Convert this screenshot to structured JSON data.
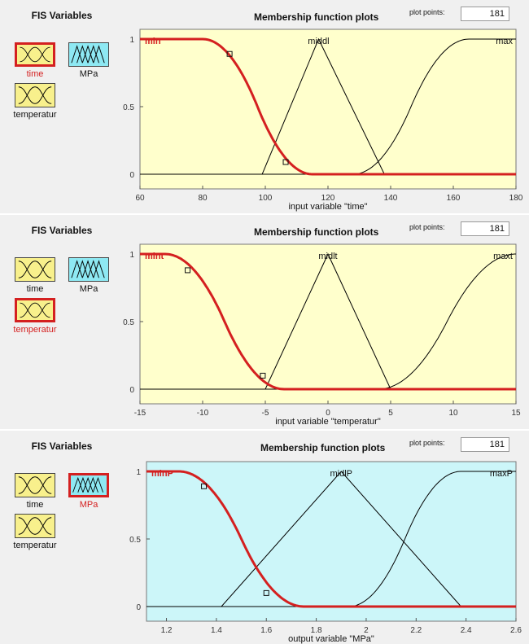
{
  "colors": {
    "input_fill": "#f8f08c",
    "output_fill": "#8ee9f3",
    "plot_bg_input": "#ffffcc",
    "plot_bg_output": "#ccf6f9",
    "selected": "#d42020",
    "curve": "#000000"
  },
  "panels": [
    {
      "fis_title": "FIS Variables",
      "variables": [
        {
          "name": "time",
          "kind": "input",
          "selected": true
        },
        {
          "name": "MPa",
          "kind": "output",
          "selected": false
        },
        {
          "name": "temperatur",
          "kind": "input",
          "selected": false
        }
      ],
      "plot_title": "Membership function plots",
      "plot_points_label": "plot points:",
      "plot_points": "181",
      "xlabel": "input variable \"time\"",
      "chart_data": {
        "type": "line",
        "xlim": [
          60,
          180
        ],
        "ylim": [
          0,
          1
        ],
        "x_ticks": [
          "60",
          "80",
          "100",
          "120",
          "140",
          "160",
          "180"
        ],
        "y_ticks": [
          "0",
          "0.5",
          "1"
        ],
        "series": [
          {
            "name": "min",
            "shape": "zmf",
            "params": [
              80,
              115
            ],
            "selected": true
          },
          {
            "name": "middl",
            "shape": "trimf",
            "params": [
              99,
              117,
              138
            ],
            "selected": false
          },
          {
            "name": "max",
            "shape": "smf",
            "params": [
              128,
              165
            ],
            "selected": false
          }
        ],
        "markers": [
          [
            88.6,
            0.89
          ],
          [
            106.5,
            0.09
          ]
        ]
      }
    },
    {
      "fis_title": "FIS Variables",
      "variables": [
        {
          "name": "time",
          "kind": "input",
          "selected": false
        },
        {
          "name": "MPa",
          "kind": "output",
          "selected": false
        },
        {
          "name": "temperatur",
          "kind": "input",
          "selected": true
        }
      ],
      "plot_title": "Membership function plots",
      "plot_points_label": "plot points:",
      "plot_points": "181",
      "xlabel": "input variable \"temperatur\"",
      "chart_data": {
        "type": "line",
        "xlim": [
          -15,
          15
        ],
        "ylim": [
          0,
          1
        ],
        "x_ticks": [
          "-15",
          "-10",
          "-5",
          "0",
          "5",
          "10",
          "15"
        ],
        "y_ticks": [
          "0",
          "0.5",
          "1"
        ],
        "series": [
          {
            "name": "mint",
            "shape": "zmf",
            "params": [
              -13,
              -3.5
            ],
            "selected": true
          },
          {
            "name": "midlt",
            "shape": "trimf",
            "params": [
              -5,
              0,
              5
            ],
            "selected": false
          },
          {
            "name": "maxt",
            "shape": "smf",
            "params": [
              4,
              15
            ],
            "selected": false
          }
        ],
        "markers": [
          [
            -11.2,
            0.88
          ],
          [
            -5.2,
            0.1
          ]
        ]
      }
    },
    {
      "fis_title": "FIS Variables",
      "variables": [
        {
          "name": "time",
          "kind": "input",
          "selected": false
        },
        {
          "name": "MPa",
          "kind": "output",
          "selected": true
        },
        {
          "name": "temperatur",
          "kind": "input",
          "selected": false
        }
      ],
      "plot_title": "Membership function plots",
      "plot_points_label": "plot points:",
      "plot_points": "181",
      "xlabel": "output variable \"MPa\"",
      "chart_data": {
        "type": "line",
        "xlim": [
          1.12,
          2.6
        ],
        "ylim": [
          0,
          1
        ],
        "x_ticks": [
          "1.2",
          "1.4",
          "1.6",
          "1.8",
          "2",
          "2.2",
          "2.4",
          "2.6"
        ],
        "y_ticks": [
          "0",
          "0.5",
          "1"
        ],
        "series": [
          {
            "name": "minP",
            "shape": "zmf",
            "params": [
              1.25,
              1.75
            ],
            "selected": true
          },
          {
            "name": "midlP",
            "shape": "trimf",
            "params": [
              1.42,
              1.9,
              2.38
            ],
            "selected": false
          },
          {
            "name": "maxP",
            "shape": "smf",
            "params": [
              1.93,
              2.38
            ],
            "selected": false
          }
        ],
        "markers": [
          [
            1.35,
            0.89
          ],
          [
            1.6,
            0.1
          ]
        ]
      }
    }
  ]
}
